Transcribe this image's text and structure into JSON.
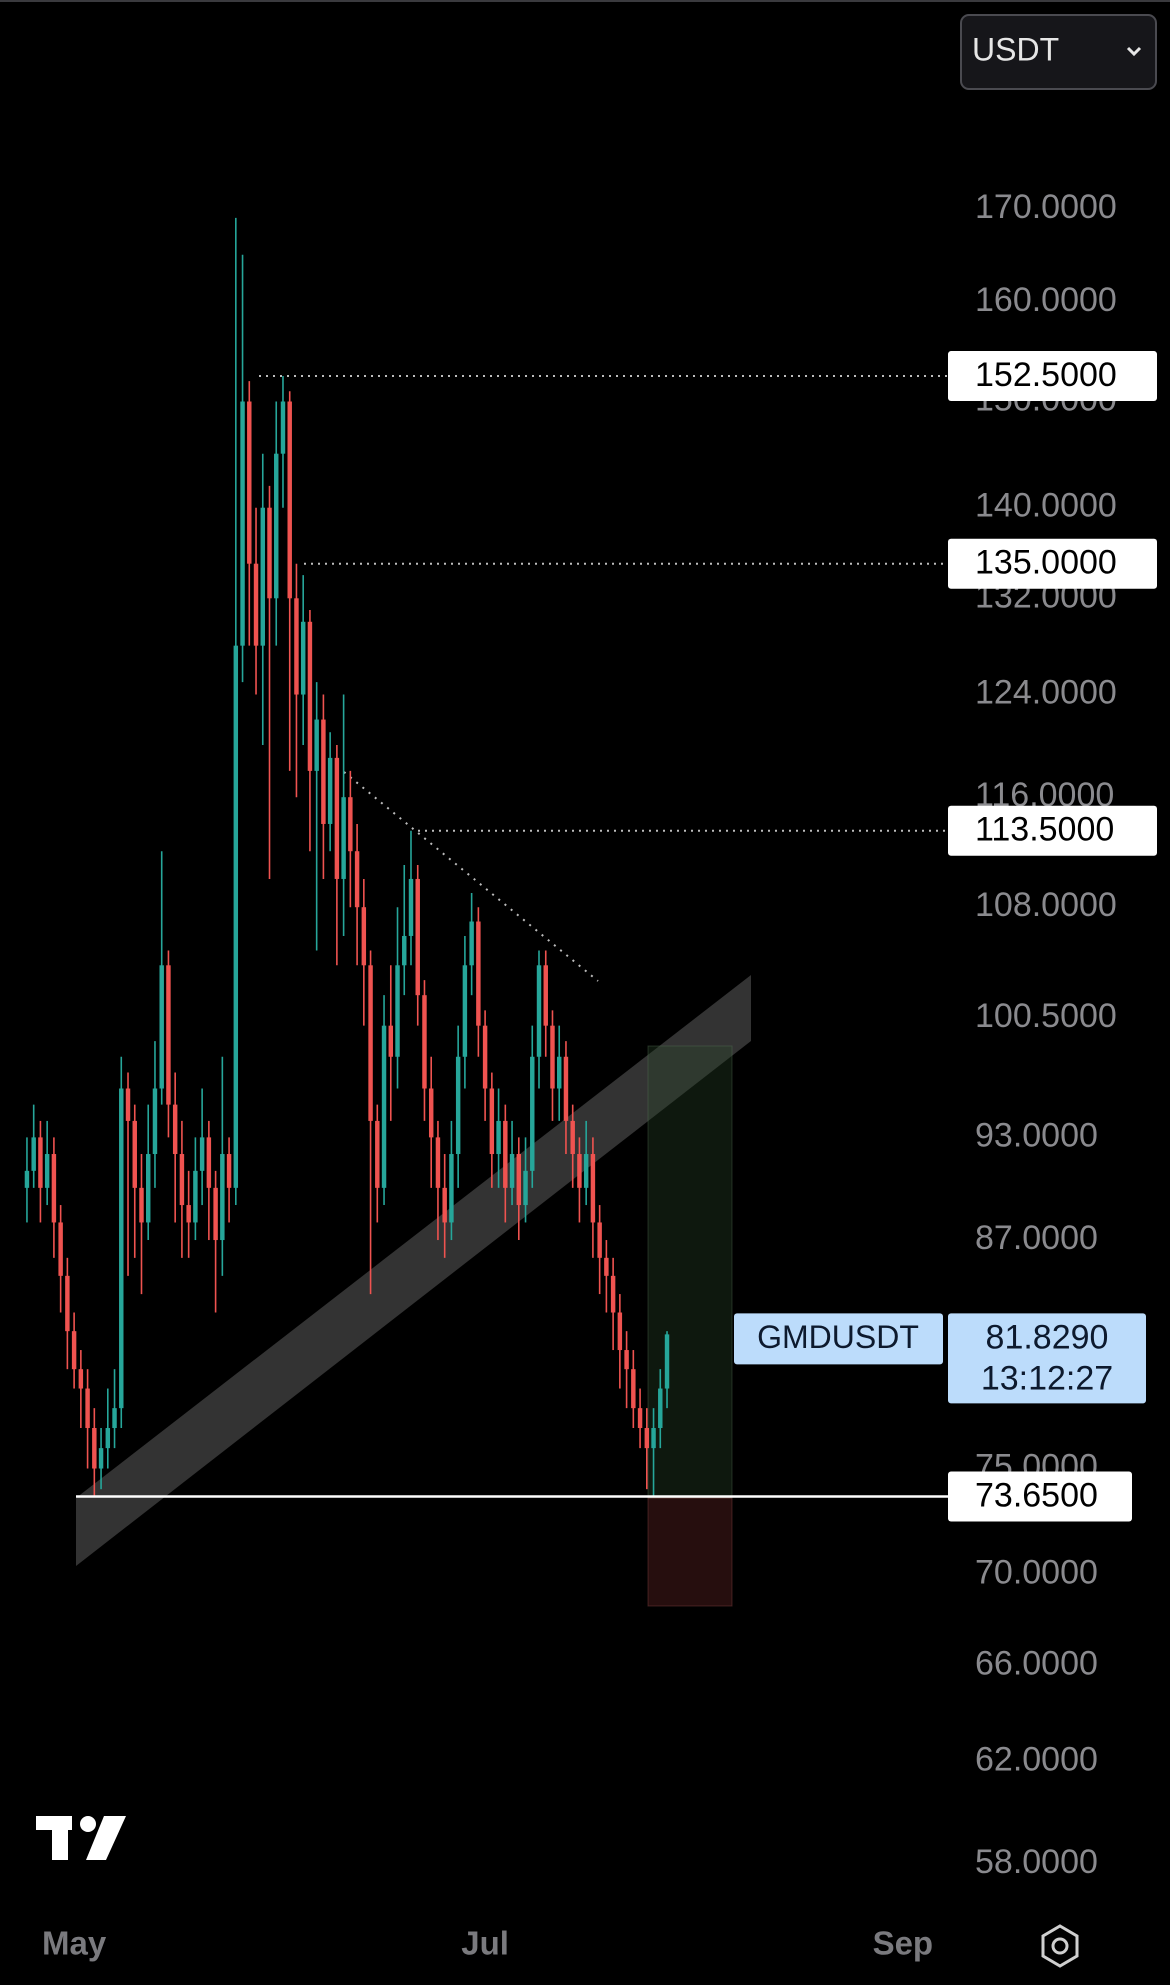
{
  "quote_selector": "USDT",
  "chart_data": {
    "type": "candlestick",
    "log_scale": true,
    "grid": false,
    "up_color": "#26a69a",
    "down_color": "#ef5350",
    "xlim": [
      -4,
      137
    ],
    "xticks": [
      {
        "value": 7,
        "label": "May"
      },
      {
        "value": 68,
        "label": "Jul"
      },
      {
        "value": 130,
        "label": "Sep"
      }
    ],
    "ylim": [
      56.3,
      194.7
    ],
    "yticks": [
      {
        "value": 170,
        "label": "170.0000"
      },
      {
        "value": 160,
        "label": "160.0000"
      },
      {
        "value": 150,
        "label": "150.0000"
      },
      {
        "value": 140,
        "label": "140.0000"
      },
      {
        "value": 132,
        "label": "132.0000"
      },
      {
        "value": 124,
        "label": "124.0000"
      },
      {
        "value": 116,
        "label": "116.0000"
      },
      {
        "value": 108,
        "label": "108.0000"
      },
      {
        "value": 100.5,
        "label": "100.5000"
      },
      {
        "value": 93,
        "label": "93.0000"
      },
      {
        "value": 87,
        "label": "87.0000"
      },
      {
        "value": 75,
        "label": "75.0000"
      },
      {
        "value": 70,
        "label": "70.0000"
      },
      {
        "value": 66,
        "label": "66.0000"
      },
      {
        "value": 62,
        "label": "62.0000"
      },
      {
        "value": 58,
        "label": "58.0000"
      }
    ],
    "price_lines": [
      {
        "value": 152.5,
        "label": "152.5000"
      },
      {
        "value": 135,
        "label": "135.0000"
      },
      {
        "value": 113.5,
        "label": "113.5000"
      },
      {
        "value": 73.65,
        "label": "73.6500"
      }
    ],
    "last_price": {
      "name": "GMDUSDT",
      "value": 81.829,
      "label": "81.8290",
      "countdown": "13:12:27"
    },
    "x": [
      0,
      1,
      2,
      3,
      4,
      5,
      6,
      7,
      8,
      9,
      10,
      11,
      12,
      13,
      14,
      15,
      16,
      17,
      18,
      19,
      20,
      21,
      22,
      23,
      24,
      25,
      26,
      27,
      28,
      29,
      30,
      31,
      32,
      33,
      34,
      35,
      36,
      37,
      38,
      39,
      40,
      41,
      42,
      43,
      44,
      45,
      46,
      47,
      48,
      49,
      50,
      51,
      52,
      53,
      54,
      55,
      56,
      57,
      58,
      59,
      60,
      61,
      62,
      63,
      64,
      65,
      66,
      67,
      68,
      69,
      70,
      71,
      72,
      73,
      74,
      75,
      76,
      77,
      78,
      79,
      80,
      81,
      82,
      83,
      84,
      85,
      86,
      87,
      88,
      89,
      90,
      91,
      92,
      93,
      94,
      95
    ],
    "open": [
      90,
      91,
      93,
      90,
      92,
      88,
      85,
      82,
      80,
      79,
      77,
      75,
      76,
      77,
      78,
      96,
      94,
      90,
      88,
      92,
      96,
      104,
      95,
      92,
      89,
      88,
      91,
      93,
      90,
      87,
      92,
      90,
      128,
      150,
      135,
      128,
      140,
      132,
      145,
      150,
      132,
      124,
      130,
      118,
      122,
      114,
      119,
      110,
      116,
      112,
      108,
      104,
      94,
      90,
      100,
      98,
      104,
      106,
      110,
      102,
      96,
      93,
      90,
      88,
      92,
      98,
      104,
      107,
      100,
      96,
      92,
      94,
      90,
      92,
      89,
      91,
      98,
      104,
      100,
      96,
      98,
      94,
      92,
      90,
      92,
      88,
      86,
      85,
      83,
      81,
      80,
      78,
      77,
      76,
      77,
      79
    ],
    "high": [
      93,
      95,
      94,
      94,
      93,
      89,
      86,
      83,
      81,
      80,
      78,
      77,
      79,
      80,
      98,
      97,
      95,
      92,
      95,
      99,
      112,
      105,
      97,
      94,
      91,
      93,
      96,
      94,
      91,
      98,
      93,
      169,
      165,
      152,
      140,
      145,
      142,
      150,
      152.5,
      151,
      135,
      134,
      131,
      125,
      124,
      121,
      120,
      124,
      118,
      114,
      110,
      105,
      95,
      102,
      104,
      108,
      111,
      113.5,
      111,
      103,
      98,
      94,
      92,
      94,
      100,
      106,
      109,
      108,
      101,
      97,
      96,
      95,
      94,
      93,
      93,
      100,
      105,
      105,
      101,
      100,
      99,
      95,
      93,
      94,
      93,
      89,
      87,
      86,
      84,
      82,
      81,
      79,
      78,
      78,
      80,
      82
    ],
    "low": [
      88,
      90,
      88,
      89,
      86,
      83,
      80,
      79,
      77,
      75,
      73.65,
      74,
      75,
      76,
      77,
      85,
      86,
      84,
      87,
      90,
      95,
      93,
      88,
      86,
      86,
      87,
      89,
      87,
      83,
      85,
      88,
      89,
      125,
      128,
      124,
      120,
      110,
      128,
      140,
      118,
      116,
      120,
      112,
      105,
      110,
      112,
      104,
      106,
      108,
      104,
      100,
      84,
      88,
      89,
      94,
      96,
      102,
      104,
      100,
      94,
      90,
      87,
      86,
      87,
      90,
      96,
      102,
      98,
      94,
      90,
      90,
      88,
      89,
      87,
      88,
      90,
      96,
      98,
      94,
      94,
      92,
      90,
      88,
      89,
      86,
      84,
      83,
      81,
      79,
      78,
      77,
      76,
      74,
      73.65,
      76,
      78
    ],
    "close": [
      91,
      93,
      90,
      92,
      88,
      85,
      82,
      80,
      79,
      77,
      75,
      76,
      77,
      78,
      96,
      94,
      90,
      88,
      92,
      96,
      104,
      95,
      92,
      89,
      88,
      91,
      93,
      90,
      87,
      92,
      90,
      128,
      150,
      135,
      128,
      140,
      132,
      145,
      150,
      132,
      124,
      130,
      118,
      122,
      114,
      119,
      110,
      116,
      112,
      108,
      104,
      94,
      90,
      100,
      98,
      104,
      106,
      110,
      102,
      96,
      93,
      90,
      88,
      92,
      98,
      104,
      107,
      100,
      96,
      92,
      94,
      90,
      92,
      89,
      91,
      98,
      104,
      100,
      96,
      98,
      94,
      92,
      90,
      92,
      88,
      86,
      85,
      83,
      81,
      80,
      78,
      77,
      76,
      77,
      79,
      81.829
    ]
  }
}
